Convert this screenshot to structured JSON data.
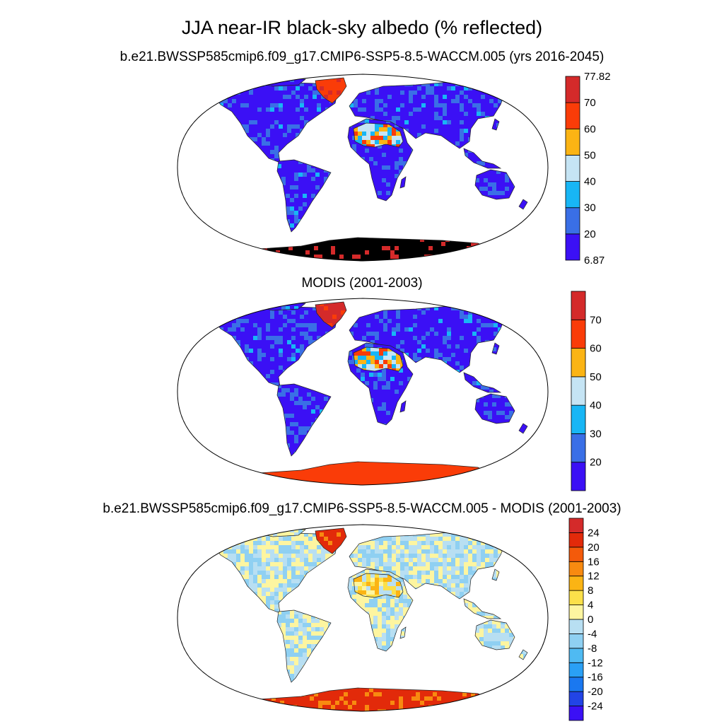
{
  "title": "JJA near-IR black-sky albedo (% reflected)",
  "panels": [
    {
      "subtitle": "b.e21.BWSSP585cmip6.f09_g17.CMIP6-SSP5-8.5-WACCM.005 (yrs 2016-2045)",
      "colorbar": {
        "bins": [
          6.87,
          20,
          30,
          40,
          50,
          60,
          70,
          77.82
        ],
        "labels": [
          "6.87",
          "20",
          "30",
          "40",
          "50",
          "60",
          "70",
          "77.82"
        ],
        "colors": [
          "#3b10f5",
          "#3a6fe6",
          "#18b6f5",
          "#c5e4f4",
          "#fbb414",
          "#fa3c08",
          "#d42a2a"
        ]
      },
      "land_class": {
        "greenland": 5,
        "antarctica": 7,
        "sahara": 4
      }
    },
    {
      "subtitle": "MODIS (2001-2003)",
      "colorbar": {
        "bins": [
          10,
          20,
          30,
          40,
          50,
          60,
          70,
          80
        ],
        "labels": [
          "",
          "20",
          "30",
          "40",
          "50",
          "60",
          "70",
          ""
        ],
        "colors": [
          "#3b10f5",
          "#3a6fe6",
          "#18b6f5",
          "#c5e4f4",
          "#fbb414",
          "#fa3c08",
          "#d42a2a"
        ]
      },
      "land_class": {
        "greenland": 6,
        "antarctica": 5,
        "sahara": 4
      }
    },
    {
      "subtitle": "b.e21.BWSSP585cmip6.f09_g17.CMIP6-SSP5-8.5-WACCM.005 - MODIS (2001-2003)",
      "colorbar": {
        "bins": [
          -28,
          -24,
          -20,
          -16,
          -12,
          -8,
          -4,
          0,
          4,
          8,
          12,
          16,
          20,
          24,
          28
        ],
        "labels": [
          "",
          "-24",
          "-20",
          "-16",
          "-12",
          "-8",
          "-4",
          "0",
          "4",
          "8",
          "12",
          "16",
          "20",
          "24",
          ""
        ],
        "colors": [
          "#3b10f5",
          "#2244e6",
          "#1a78f0",
          "#2aa0f5",
          "#4fbaf2",
          "#8fd0f2",
          "#b8dff2",
          "#fdf5a0",
          "#fbe04a",
          "#fbb414",
          "#f88a10",
          "#f45a0a",
          "#e22a0a",
          "#d42a2a"
        ]
      },
      "land_class": {
        "greenland": 12,
        "antarctica": 12,
        "sahara": 7
      }
    }
  ]
}
